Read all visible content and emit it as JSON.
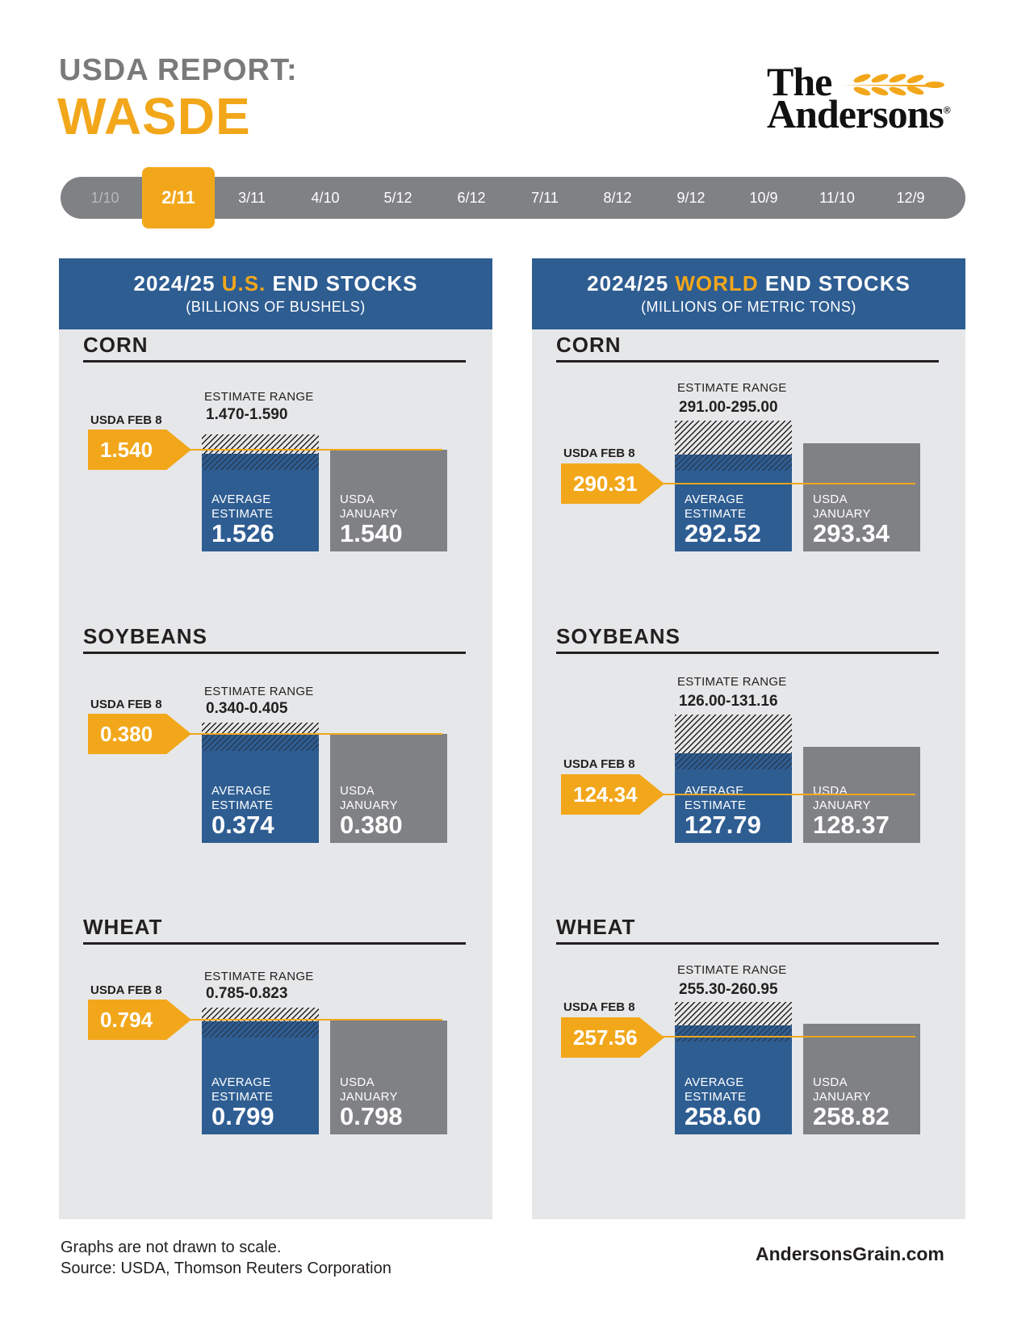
{
  "header": {
    "title_prefix": "USDA REPORT:",
    "title_main": "WASDE",
    "logo_line1": "The",
    "logo_line2": "Andersons",
    "logo_mark": "®"
  },
  "timeline": {
    "dates": [
      "1/10",
      "2/11",
      "3/11",
      "4/10",
      "5/12",
      "6/12",
      "7/11",
      "8/12",
      "9/12",
      "10/9",
      "11/10",
      "12/9"
    ],
    "active": "2/11"
  },
  "colors": {
    "navy": "#2e5d92",
    "gold": "#f2a71b",
    "gray": "#808184",
    "panel": "#e6e7e8"
  },
  "labels": {
    "estimate_range": "ESTIMATE RANGE",
    "usda_feb": "USDA FEB 8",
    "avg_line1": "AVERAGE",
    "avg_line2": "ESTIMATE",
    "jan_line1": "USDA",
    "jan_line2": "JANUARY"
  },
  "panels": {
    "us": {
      "title_before": "2024/25 ",
      "title_accent": "U.S.",
      "title_after": " END STOCKS",
      "subtitle": "(BILLIONS OF BUSHELS)"
    },
    "world": {
      "title_before": "2024/25 ",
      "title_accent": "WORLD",
      "title_after": " END STOCKS",
      "subtitle": "(MILLIONS OF METRIC TONS)"
    }
  },
  "chart_data": [
    {
      "type": "bar",
      "panel": "us",
      "crop": "CORN",
      "usda_feb": "1.540",
      "estimate_range": "1.470-1.590",
      "average_estimate": "1.526",
      "usda_january": "1.540",
      "values": {
        "usda_feb": 1.54,
        "range_low": 1.47,
        "range_high": 1.59,
        "average_estimate": 1.526,
        "usda_january": 1.54
      }
    },
    {
      "type": "bar",
      "panel": "us",
      "crop": "SOYBEANS",
      "usda_feb": "0.380",
      "estimate_range": "0.340-0.405",
      "average_estimate": "0.374",
      "usda_january": "0.380",
      "values": {
        "usda_feb": 0.38,
        "range_low": 0.34,
        "range_high": 0.405,
        "average_estimate": 0.374,
        "usda_january": 0.38
      }
    },
    {
      "type": "bar",
      "panel": "us",
      "crop": "WHEAT",
      "usda_feb": "0.794",
      "estimate_range": "0.785-0.823",
      "average_estimate": "0.799",
      "usda_january": "0.798",
      "values": {
        "usda_feb": 0.794,
        "range_low": 0.785,
        "range_high": 0.823,
        "average_estimate": 0.799,
        "usda_january": 0.798
      }
    },
    {
      "type": "bar",
      "panel": "world",
      "crop": "CORN",
      "usda_feb": "290.31",
      "estimate_range": "291.00-295.00",
      "average_estimate": "292.52",
      "usda_january": "293.34",
      "values": {
        "usda_feb": 290.31,
        "range_low": 291.0,
        "range_high": 295.0,
        "average_estimate": 292.52,
        "usda_january": 293.34
      }
    },
    {
      "type": "bar",
      "panel": "world",
      "crop": "SOYBEANS",
      "usda_feb": "124.34",
      "estimate_range": "126.00-131.16",
      "average_estimate": "127.79",
      "usda_january": "128.37",
      "values": {
        "usda_feb": 124.34,
        "range_low": 126.0,
        "range_high": 131.16,
        "average_estimate": 127.79,
        "usda_january": 128.37
      }
    },
    {
      "type": "bar",
      "panel": "world",
      "crop": "WHEAT",
      "usda_feb": "257.56",
      "estimate_range": "255.30-260.95",
      "average_estimate": "258.60",
      "usda_january": "258.82",
      "values": {
        "usda_feb": 257.56,
        "range_low": 255.3,
        "range_high": 260.95,
        "average_estimate": 258.6,
        "usda_january": 258.82
      }
    }
  ],
  "footer": {
    "note": "Graphs are not drawn to scale.",
    "source": "Source: USDA, Thomson Reuters Corporation",
    "website": "AndersonsGrain.com"
  }
}
